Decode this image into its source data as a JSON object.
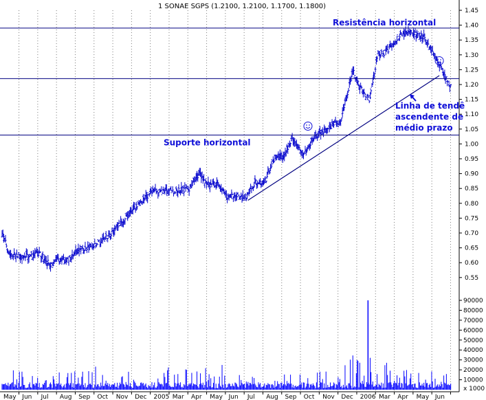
{
  "chart_data": {
    "type": "candlestick",
    "title": "1 SONAE SGPS (1.2100, 1.2100, 1.1700, 1.1800)",
    "colors": {
      "price": "#0000cc",
      "volume": "#0000ff",
      "lines": "#000080",
      "annotation": "#1010d8"
    },
    "y_price": {
      "ticks": [
        "1.45",
        "1.40",
        "1.35",
        "1.30",
        "1.25",
        "1.20",
        "1.15",
        "1.10",
        "1.05",
        "1.00",
        "0.95",
        "0.90",
        "0.85",
        "0.80",
        "0.75",
        "0.70",
        "0.65",
        "0.60",
        "0.55"
      ],
      "range": [
        0.53,
        1.47
      ]
    },
    "y_volume": {
      "ticks": [
        "90000",
        "80000",
        "70000",
        "60000",
        "50000",
        "40000",
        "30000",
        "20000",
        "10000"
      ],
      "unit_label": "x 1000",
      "range": [
        0,
        100000
      ]
    },
    "x_months": [
      "May",
      "Jun",
      "Jul",
      "Aug",
      "Sep",
      "Oct",
      "Nov",
      "Dec",
      "2005",
      "Mar",
      "Apr",
      "May",
      "Jun",
      "Jul",
      "Aug",
      "Sep",
      "Oct",
      "Nov",
      "Dec",
      "2006",
      "Mar",
      "Apr",
      "May",
      "Jun"
    ],
    "grid": "vertical dotted per month",
    "horizontal_lines": [
      {
        "label": "Resistência horizontal",
        "value": 1.39
      },
      {
        "label": "",
        "value": 1.22
      },
      {
        "label": "Suporte horizontal",
        "value": 1.03
      }
    ],
    "trendline": {
      "label": [
        "Linha de tendê",
        "ascendente de",
        "médio prazo"
      ],
      "from": {
        "month_index": 13.1,
        "value": 0.81
      },
      "to": {
        "month_index": 23.3,
        "value": 1.23
      }
    },
    "price_path_monthly_close": [
      [
        0,
        0.7
      ],
      [
        0.4,
        0.63
      ],
      [
        1,
        0.62
      ],
      [
        2,
        0.63
      ],
      [
        2.6,
        0.59
      ],
      [
        3,
        0.61
      ],
      [
        3.6,
        0.61
      ],
      [
        4,
        0.64
      ],
      [
        5,
        0.66
      ],
      [
        6,
        0.71
      ],
      [
        7,
        0.78
      ],
      [
        8,
        0.84
      ],
      [
        9,
        0.84
      ],
      [
        10,
        0.85
      ],
      [
        10.5,
        0.9
      ],
      [
        11,
        0.86
      ],
      [
        11.5,
        0.87
      ],
      [
        12,
        0.82
      ],
      [
        12.5,
        0.83
      ],
      [
        13,
        0.82
      ],
      [
        13.5,
        0.87
      ],
      [
        14,
        0.87
      ],
      [
        14.5,
        0.95
      ],
      [
        15,
        0.96
      ],
      [
        15.5,
        1.02
      ],
      [
        16,
        0.96
      ],
      [
        16.5,
        1.01
      ],
      [
        17,
        1.04
      ],
      [
        17.5,
        1.06
      ],
      [
        18,
        1.07
      ],
      [
        18.4,
        1.17
      ],
      [
        18.7,
        1.25
      ],
      [
        19,
        1.2
      ],
      [
        19.3,
        1.17
      ],
      [
        19.6,
        1.15
      ],
      [
        20,
        1.3
      ],
      [
        20.5,
        1.31
      ],
      [
        21,
        1.35
      ],
      [
        21.5,
        1.38
      ],
      [
        22,
        1.37
      ],
      [
        22.5,
        1.36
      ],
      [
        23,
        1.3
      ],
      [
        23.5,
        1.24
      ],
      [
        24,
        1.18
      ]
    ],
    "volume_spike": {
      "month_index": 19.5,
      "value": 90000
    },
    "smiley_markers": [
      {
        "face": "happy",
        "month_index": 16.3,
        "value": 1.06
      },
      {
        "face": "sad",
        "month_index": 23.3,
        "value": 1.28
      }
    ]
  }
}
